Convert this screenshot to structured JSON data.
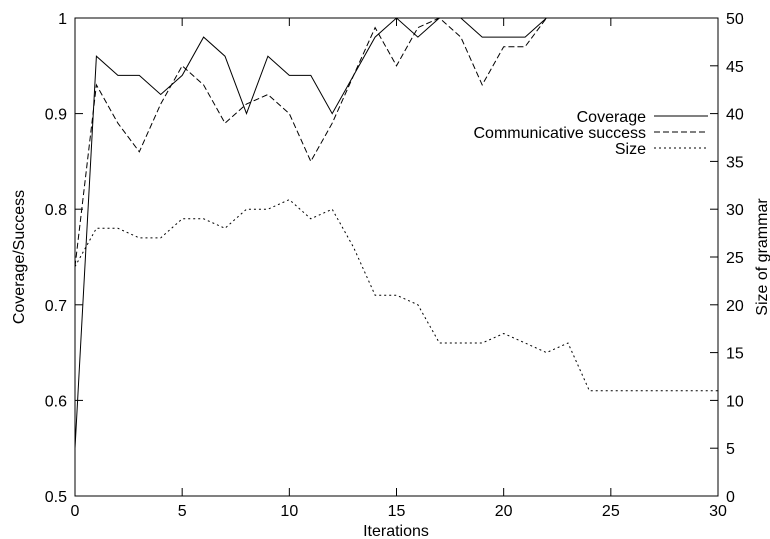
{
  "chart_data": {
    "type": "line",
    "title": "",
    "xlabel": "Iterations",
    "ylabel": "Coverage/Success",
    "y2label": "Size of grammar",
    "xlim": [
      0,
      30
    ],
    "ylim": [
      0.5,
      1.0
    ],
    "y2lim": [
      0,
      50
    ],
    "x_ticks": [
      "0",
      "5",
      "10",
      "15",
      "20",
      "25",
      "30"
    ],
    "y_ticks": [
      "0.5",
      "0.6",
      "0.7",
      "0.8",
      "0.9",
      "1"
    ],
    "y2_ticks": [
      "0",
      "5",
      "10",
      "15",
      "20",
      "25",
      "30",
      "35",
      "40",
      "45",
      "50"
    ],
    "grid": false,
    "legend_position": "top-right",
    "series": [
      {
        "name": "Coverage",
        "axis": "left",
        "dash": "solid",
        "x": [
          0,
          1,
          2,
          3,
          4,
          5,
          6,
          7,
          8,
          9,
          10,
          11,
          12,
          13,
          14,
          15,
          16,
          17,
          18,
          19,
          20,
          21,
          22,
          23,
          24,
          25,
          26,
          27,
          28,
          29,
          30
        ],
        "y": [
          0.55,
          0.96,
          0.94,
          0.94,
          0.92,
          0.94,
          0.98,
          0.96,
          0.9,
          0.96,
          0.94,
          0.94,
          0.9,
          0.94,
          0.98,
          1.0,
          0.98,
          1.0,
          1.0,
          0.98,
          0.98,
          0.98,
          1.0,
          1.0,
          1.0,
          1.0,
          1.0,
          1.0,
          1.0,
          1.0,
          1.0
        ]
      },
      {
        "name": "Communicative success",
        "axis": "left",
        "dash": "dashed",
        "x": [
          0,
          1,
          2,
          3,
          4,
          5,
          6,
          7,
          8,
          9,
          10,
          11,
          12,
          13,
          14,
          15,
          16,
          17,
          18,
          19,
          20,
          21,
          22,
          23,
          24,
          25,
          26,
          27,
          28,
          29,
          30
        ],
        "y": [
          0.74,
          0.93,
          0.89,
          0.86,
          0.91,
          0.95,
          0.93,
          0.89,
          0.91,
          0.92,
          0.9,
          0.85,
          0.89,
          0.94,
          0.99,
          0.95,
          0.99,
          1.0,
          0.98,
          0.93,
          0.97,
          0.97,
          1.0,
          1.0,
          1.0,
          1.0,
          1.0,
          1.0,
          1.0,
          1.0,
          1.0
        ]
      },
      {
        "name": "Size",
        "axis": "right",
        "dash": "dotted",
        "x": [
          0,
          1,
          2,
          3,
          4,
          5,
          6,
          7,
          8,
          9,
          10,
          11,
          12,
          13,
          14,
          15,
          16,
          17,
          18,
          19,
          20,
          21,
          22,
          23,
          24,
          25,
          26,
          27,
          28,
          29,
          30
        ],
        "y": [
          24,
          28,
          28,
          27,
          27,
          29,
          29,
          28,
          30,
          30,
          31,
          29,
          30,
          26,
          21,
          21,
          20,
          16,
          16,
          16,
          17,
          16,
          15,
          16,
          11,
          11,
          11,
          11,
          11,
          11,
          11
        ]
      }
    ]
  }
}
